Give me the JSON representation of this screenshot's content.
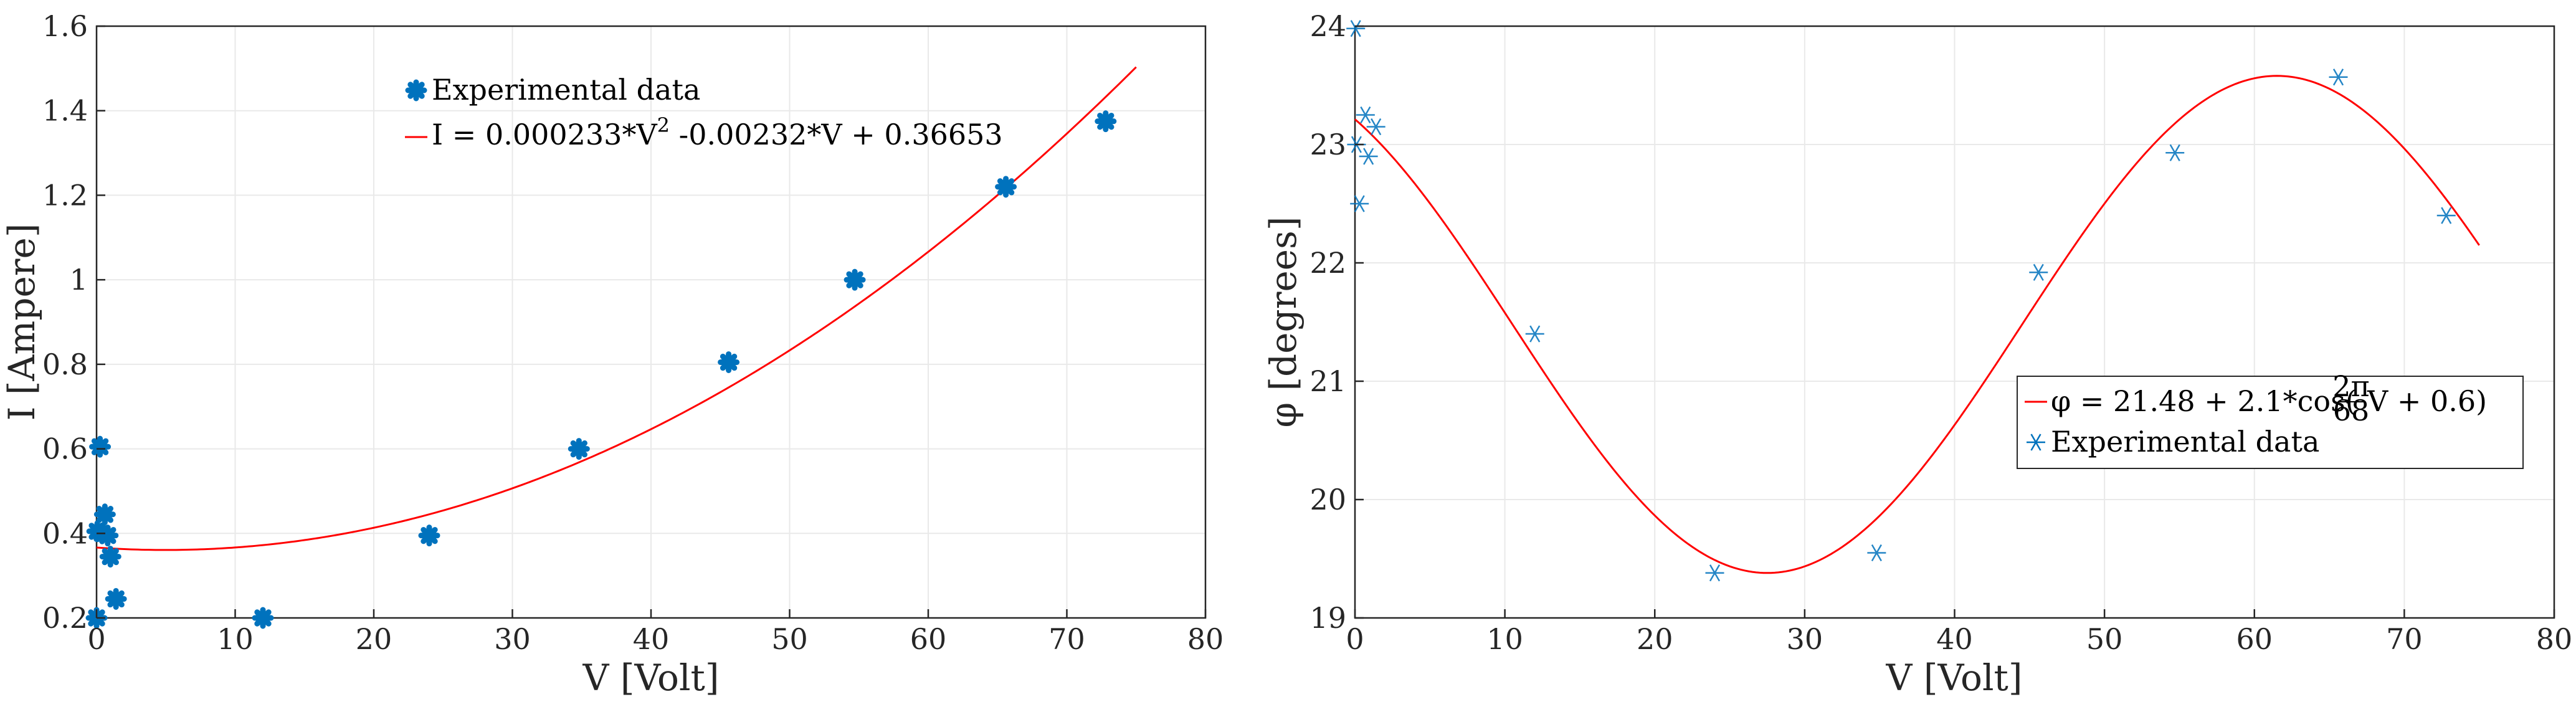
{
  "chart_data": [
    {
      "type": "scatter",
      "xlabel": "V [Volt]",
      "ylabel": "I [Ampere]",
      "xlim": [
        0,
        80
      ],
      "ylim": [
        0.2,
        1.6
      ],
      "xticks": [
        "0",
        "10",
        "20",
        "30",
        "40",
        "50",
        "60",
        "70",
        "80"
      ],
      "yticks": [
        "0.2",
        "0.4",
        "0.6",
        "0.8",
        "1",
        "1.2",
        "1.4",
        "1.6"
      ],
      "grid": true,
      "legend_position": "top",
      "colors": {
        "points": "#0072BD",
        "fit": "#FF0000"
      },
      "series": [
        {
          "name": "Experimental data",
          "kind": "points",
          "marker": "asterisk-filled",
          "points": [
            [
              0.0,
              0.2
            ],
            [
              0.05,
              0.405
            ],
            [
              0.25,
              0.605
            ],
            [
              0.4,
              0.4
            ],
            [
              0.6,
              0.445
            ],
            [
              0.8,
              0.395
            ],
            [
              1.0,
              0.345
            ],
            [
              1.4,
              0.245
            ],
            [
              12.0,
              0.2
            ],
            [
              24.0,
              0.395
            ],
            [
              34.8,
              0.6
            ],
            [
              45.6,
              0.805
            ],
            [
              54.7,
              1.0
            ],
            [
              65.6,
              1.22
            ],
            [
              72.8,
              1.375
            ]
          ]
        },
        {
          "name": "I = 0.000233*V",
          "name_sup": "2",
          "name_rest": "  -0.00232*V + 0.36653",
          "kind": "fit",
          "formula": {
            "a": 0.000233,
            "b": -0.00232,
            "c": 0.36653
          },
          "x_range": [
            0,
            75
          ]
        }
      ]
    },
    {
      "type": "scatter",
      "xlabel": "V [Volt]",
      "ylabel": "φ [degrees]",
      "xlim": [
        0,
        80
      ],
      "ylim": [
        19,
        24
      ],
      "xticks": [
        "0",
        "10",
        "20",
        "30",
        "40",
        "50",
        "60",
        "70",
        "80"
      ],
      "yticks": [
        "19",
        "20",
        "21",
        "22",
        "23",
        "24"
      ],
      "grid": true,
      "legend_position": "right",
      "colors": {
        "points": "#0072BD",
        "fit": "#FF0000"
      },
      "series": [
        {
          "name": "φ = 21.48 + 2.1*cos(2π/68 V + 0.6)",
          "name_parts": {
            "lhs": "φ = 21.48 + 2.1*cos(",
            "num": "2π",
            "den": "68",
            "rhs": "V + 0.6)"
          },
          "kind": "fit",
          "formula": {
            "offset": 21.48,
            "amp": 2.1,
            "period": 68,
            "phase": 0.6
          },
          "x_range": [
            0,
            75
          ]
        },
        {
          "name": "Experimental data",
          "kind": "points",
          "marker": "asterisk",
          "points": [
            [
              0.05,
              23.98
            ],
            [
              0.1,
              23.0
            ],
            [
              0.3,
              22.5
            ],
            [
              0.7,
              23.25
            ],
            [
              0.9,
              22.9
            ],
            [
              1.4,
              23.15
            ],
            [
              12.0,
              21.4
            ],
            [
              24.0,
              19.38
            ],
            [
              34.8,
              19.55
            ],
            [
              45.6,
              21.92
            ],
            [
              54.7,
              22.93
            ],
            [
              65.6,
              23.57
            ],
            [
              72.8,
              22.4
            ]
          ]
        }
      ]
    }
  ]
}
